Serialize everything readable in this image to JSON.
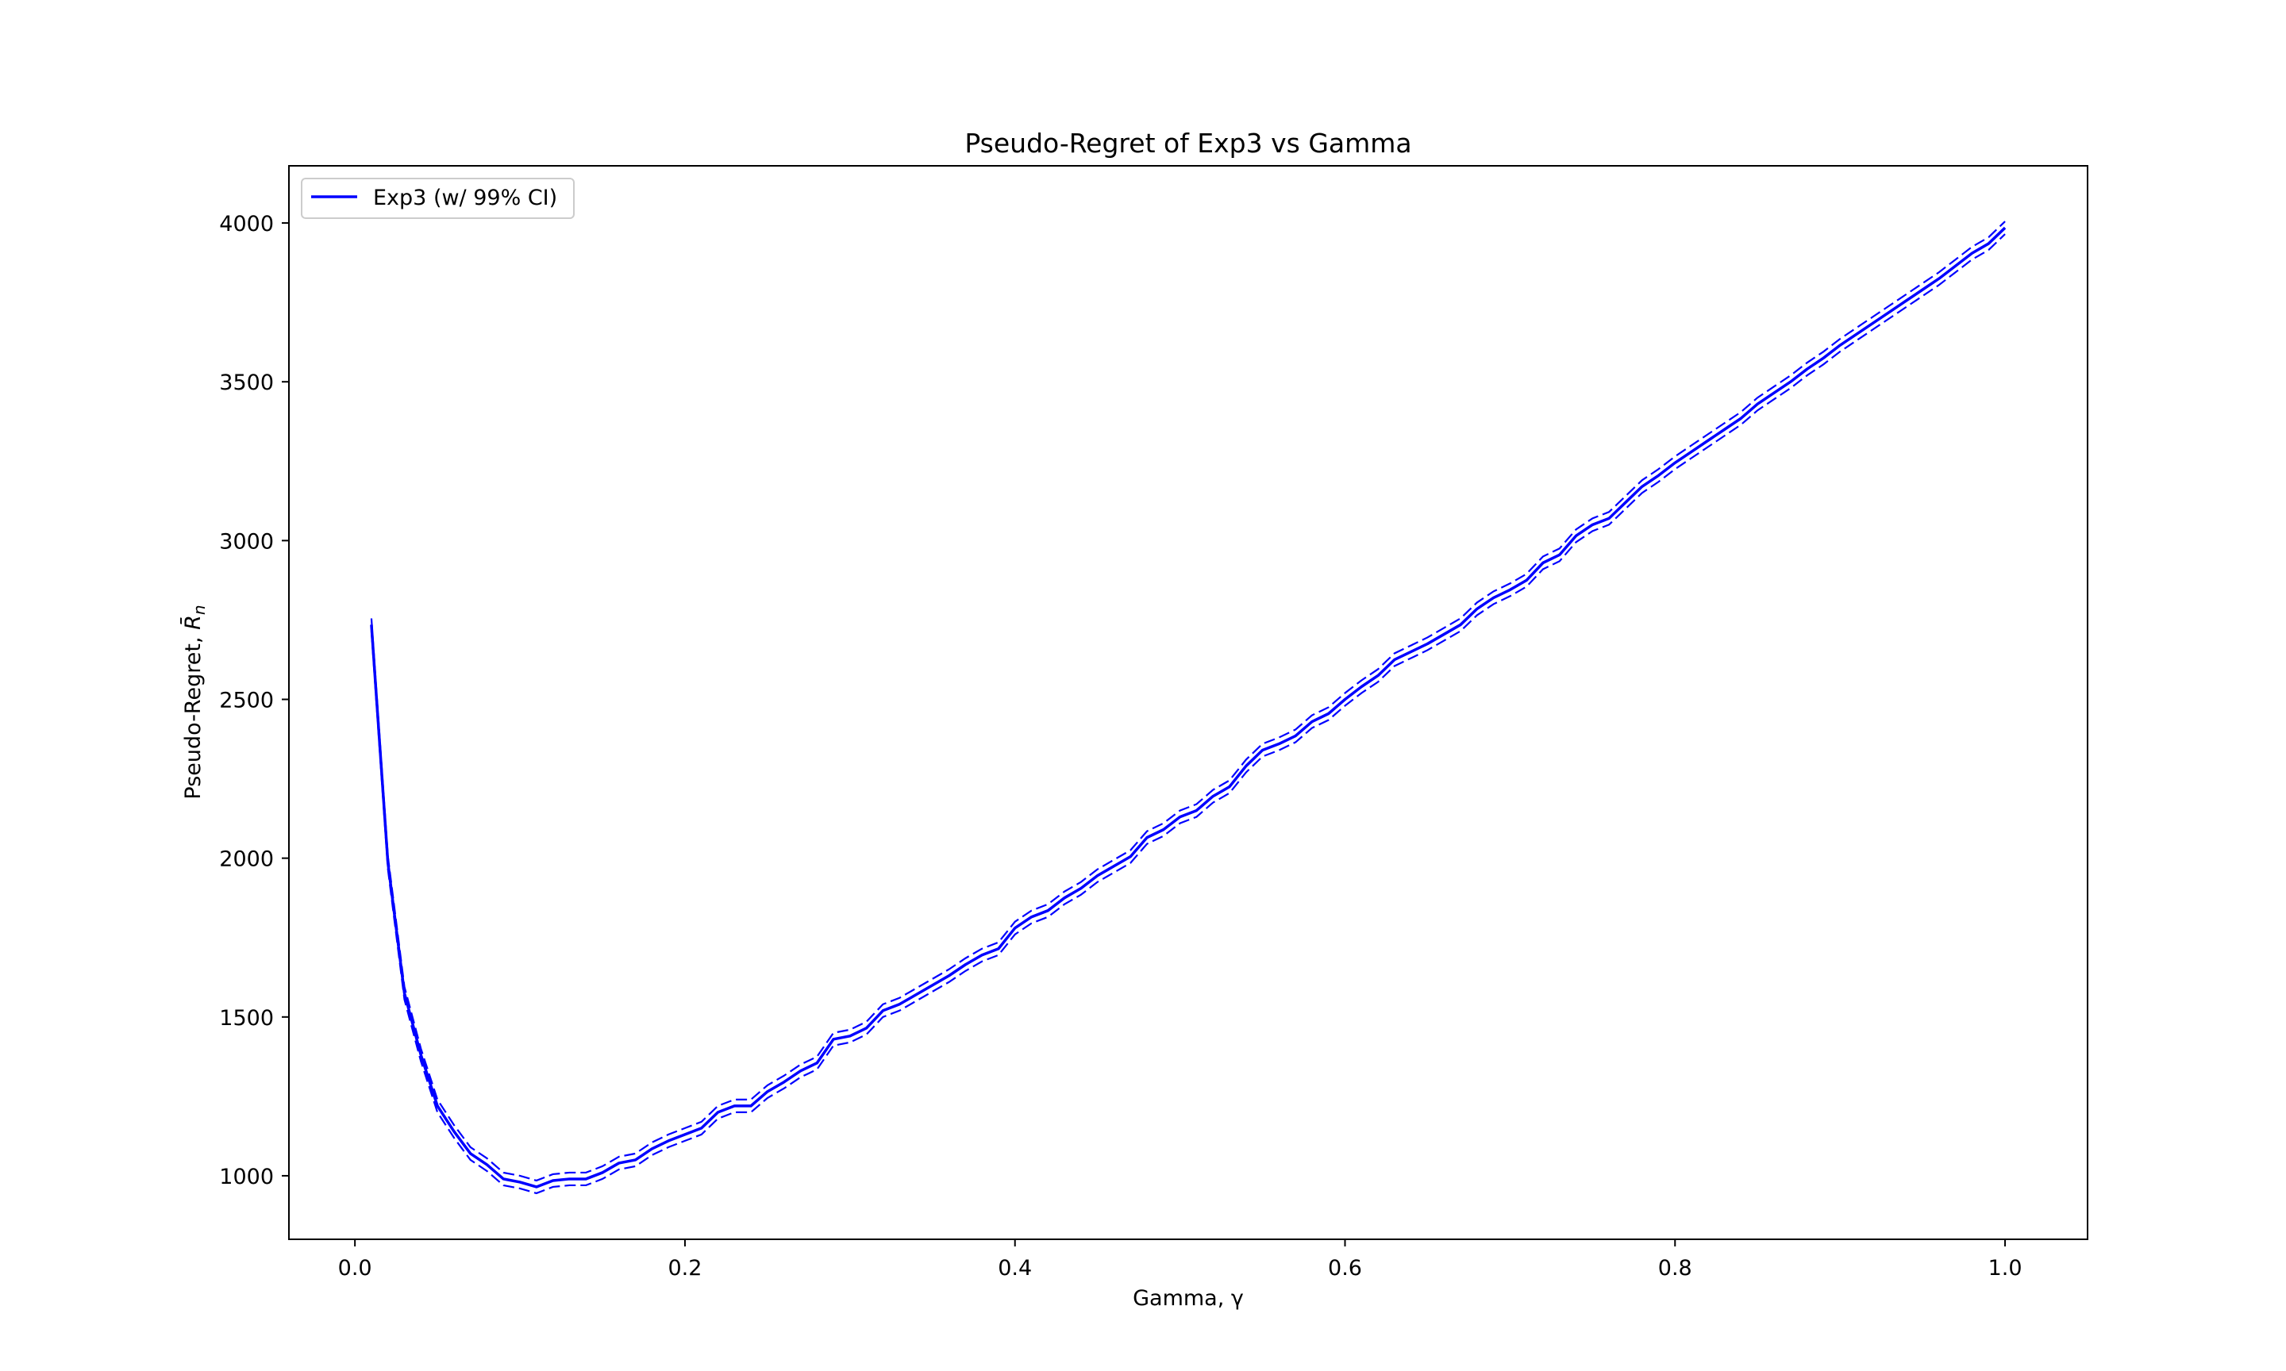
{
  "chart_data": {
    "type": "line",
    "title": "Pseudo-Regret of Exp3 vs Gamma",
    "xlabel": "Gamma, γ",
    "ylabel_text": "Pseudo-Regret, ",
    "ylabel_symbol": "R̄",
    "ylabel_subscript": "n",
    "xlim": [
      -0.04,
      1.05
    ],
    "ylim": [
      800,
      4180
    ],
    "xticks": [
      0.0,
      0.2,
      0.4,
      0.6,
      0.8,
      1.0
    ],
    "xtick_labels": [
      "0.0",
      "0.2",
      "0.4",
      "0.6",
      "0.8",
      "1.0"
    ],
    "yticks": [
      1000,
      1500,
      2000,
      2500,
      3000,
      3500,
      4000
    ],
    "ytick_labels": [
      "1000",
      "1500",
      "2000",
      "2500",
      "3000",
      "3500",
      "4000"
    ],
    "legend_label": "Exp3 (w/ 99% CI)",
    "legend_location": "upper left",
    "line_color": "#0000ff",
    "ci_halfwidth": 20,
    "series": [
      {
        "name": "Exp3 (w/ 99% CI)",
        "x": [
          0.01,
          0.02,
          0.03,
          0.04,
          0.05,
          0.06,
          0.07,
          0.08,
          0.09,
          0.1,
          0.11,
          0.12,
          0.13,
          0.14,
          0.15,
          0.16,
          0.17,
          0.18,
          0.19,
          0.2,
          0.21,
          0.22,
          0.23,
          0.24,
          0.25,
          0.26,
          0.27,
          0.28,
          0.29,
          0.3,
          0.31,
          0.32,
          0.33,
          0.34,
          0.35,
          0.36,
          0.37,
          0.38,
          0.39,
          0.4,
          0.41,
          0.42,
          0.43,
          0.44,
          0.45,
          0.46,
          0.47,
          0.48,
          0.49,
          0.5,
          0.51,
          0.52,
          0.53,
          0.54,
          0.55,
          0.56,
          0.57,
          0.58,
          0.59,
          0.6,
          0.61,
          0.62,
          0.63,
          0.64,
          0.65,
          0.66,
          0.67,
          0.68,
          0.69,
          0.7,
          0.71,
          0.72,
          0.73,
          0.74,
          0.75,
          0.76,
          0.77,
          0.78,
          0.79,
          0.8,
          0.81,
          0.82,
          0.83,
          0.84,
          0.85,
          0.86,
          0.87,
          0.88,
          0.89,
          0.9,
          0.91,
          0.92,
          0.93,
          0.94,
          0.95,
          0.96,
          0.97,
          0.98,
          0.99,
          1.0
        ],
        "values": [
          2735,
          1985,
          1575,
          1380,
          1220,
          1140,
          1070,
          1035,
          990,
          980,
          965,
          985,
          990,
          990,
          1010,
          1040,
          1050,
          1085,
          1110,
          1130,
          1150,
          1200,
          1220,
          1220,
          1265,
          1295,
          1330,
          1355,
          1430,
          1440,
          1465,
          1520,
          1540,
          1570,
          1600,
          1630,
          1665,
          1695,
          1715,
          1780,
          1815,
          1835,
          1875,
          1905,
          1945,
          1975,
          2005,
          2065,
          2090,
          2130,
          2150,
          2195,
          2225,
          2290,
          2340,
          2360,
          2385,
          2430,
          2455,
          2500,
          2540,
          2575,
          2625,
          2650,
          2675,
          2705,
          2735,
          2785,
          2820,
          2845,
          2875,
          2930,
          2955,
          3015,
          3050,
          3070,
          3120,
          3170,
          3205,
          3245,
          3280,
          3315,
          3350,
          3385,
          3430,
          3465,
          3500,
          3540,
          3575,
          3615,
          3650,
          3685,
          3720,
          3755,
          3790,
          3825,
          3865,
          3905,
          3935,
          3985
        ]
      }
    ]
  }
}
